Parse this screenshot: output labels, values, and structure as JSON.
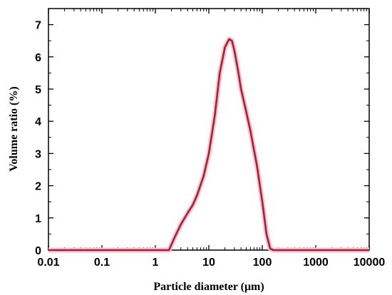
{
  "chart_data": {
    "type": "line",
    "xlabel": "Particle diameter (μm)",
    "ylabel": "Volume ratio (%)",
    "xscale": "log",
    "xlim": [
      0.01,
      10000
    ],
    "ylim": [
      0,
      7.5
    ],
    "x_ticks": [
      "0.01",
      "0.1",
      "1",
      "10",
      "100",
      "1000",
      "10000"
    ],
    "y_ticks": [
      "0",
      "1",
      "2",
      "3",
      "4",
      "5",
      "6",
      "7"
    ],
    "grid": false,
    "colors": {
      "line": "#b02020",
      "halo": "#f4c4e0"
    },
    "series": [
      {
        "x": [
          0.01,
          0.1,
          1,
          1.8,
          2.3,
          3,
          4,
          5,
          6,
          8,
          10,
          13,
          16,
          20,
          24,
          27,
          30,
          35,
          40,
          50,
          60,
          70,
          80,
          100,
          120,
          140,
          160,
          1000,
          10000
        ],
        "values": [
          0,
          0,
          0,
          0,
          0.4,
          0.8,
          1.15,
          1.4,
          1.7,
          2.3,
          3.0,
          4.2,
          5.5,
          6.3,
          6.55,
          6.5,
          6.2,
          5.6,
          5.0,
          4.3,
          3.7,
          3.1,
          2.6,
          1.5,
          0.5,
          0.05,
          0,
          0,
          0
        ]
      }
    ]
  }
}
